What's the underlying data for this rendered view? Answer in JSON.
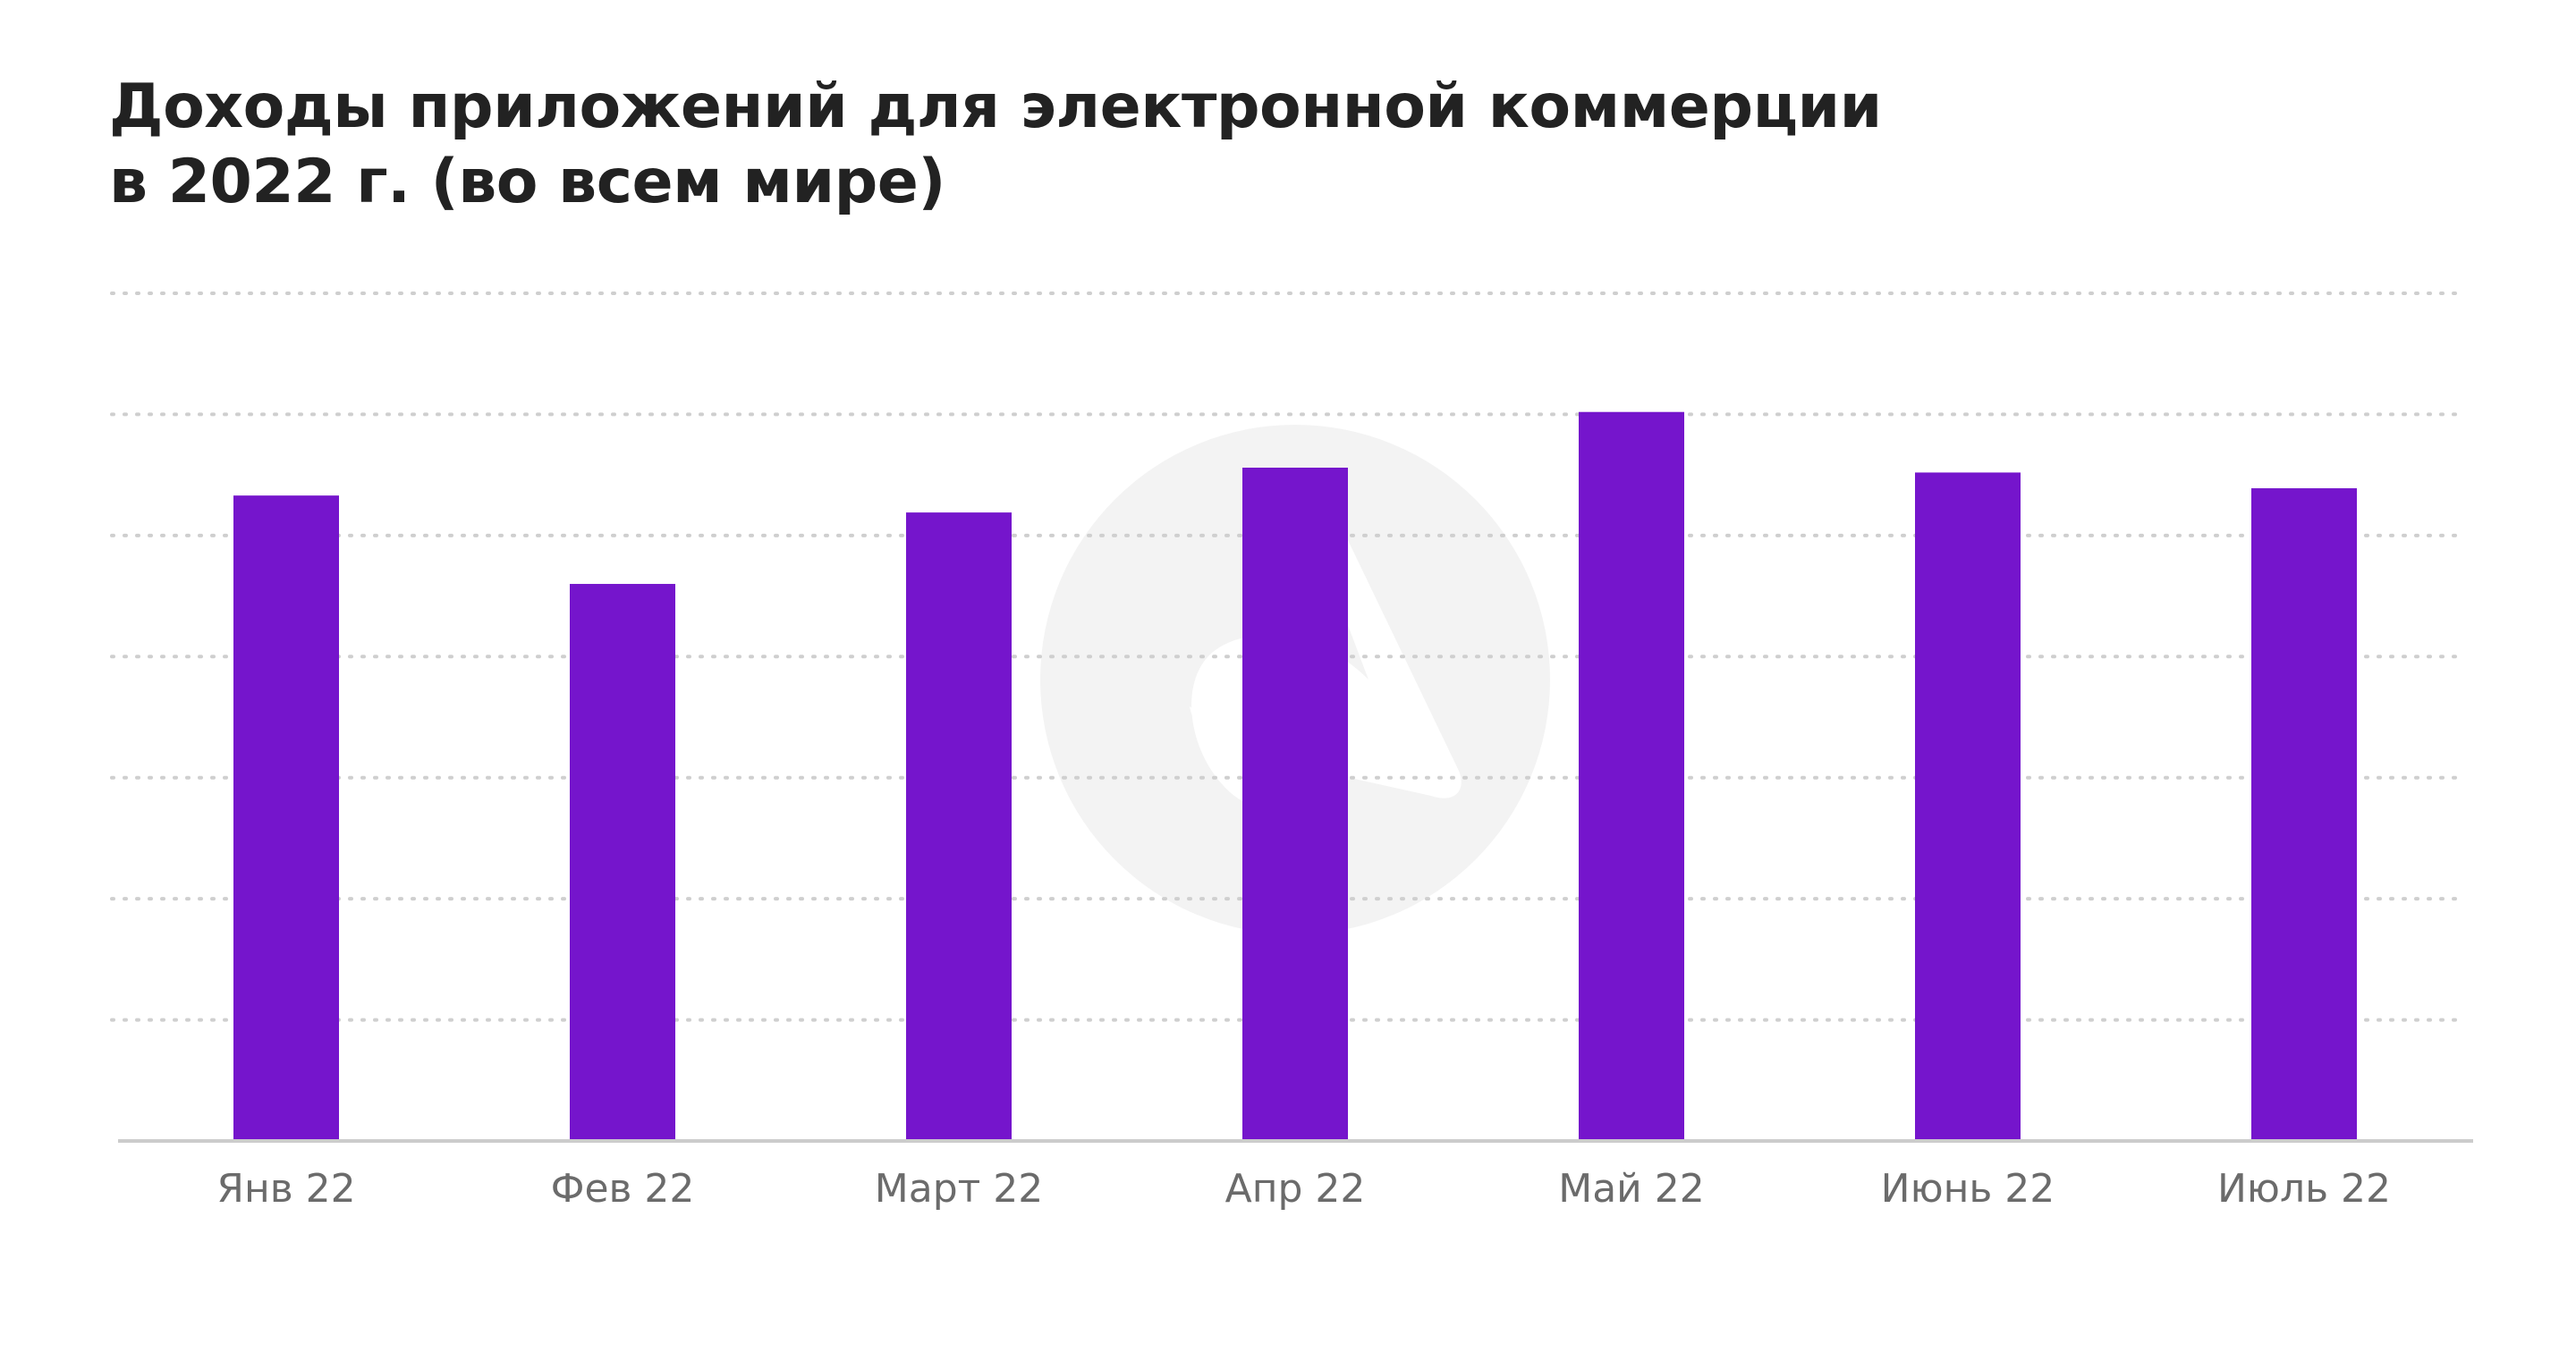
{
  "title": {
    "line1": "Доходы приложений для электронной коммерции",
    "line2": "в 2022 г. (во всем мире)"
  },
  "colors": {
    "bar": "#7515cc",
    "grid": "#cfcfcf",
    "axis": "#cccccc",
    "tick_text": "#6b6b6b",
    "watermark": "#f3f3f3"
  },
  "watermark": {
    "icon": "brand-logo-icon"
  },
  "chart_data": {
    "type": "bar",
    "title": "Доходы приложений для электронной коммерции в 2022 г. (во всем мире)",
    "xlabel": "",
    "ylabel": "",
    "categories": [
      "Янв 22",
      "Фев 22",
      "Март 22",
      "Апр 22",
      "Май 22",
      "Июнь 22",
      "Июль 22"
    ],
    "values": [
      5.33,
      4.6,
      5.19,
      5.56,
      6.02,
      5.52,
      5.39
    ],
    "ylim": [
      0,
      7
    ],
    "grid": true,
    "legend": "none",
    "y_tick_labels_shown": false
  }
}
